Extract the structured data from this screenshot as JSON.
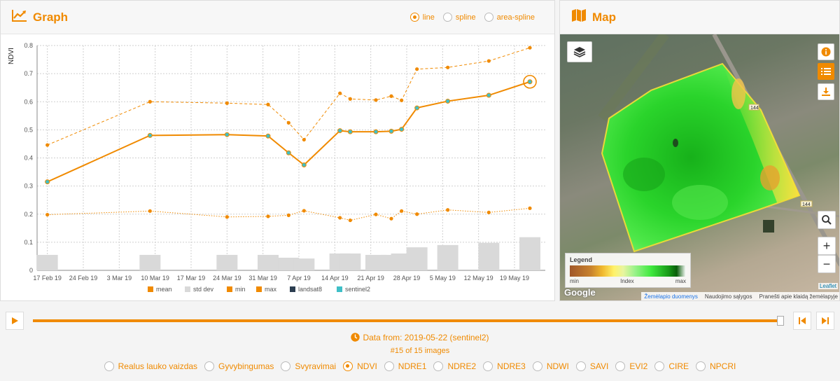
{
  "graph": {
    "title": "Graph",
    "modes": [
      {
        "label": "line",
        "selected": true
      },
      {
        "label": "spline",
        "selected": false
      },
      {
        "label": "area-spline",
        "selected": false
      }
    ]
  },
  "map": {
    "title": "Map",
    "road_label_1": "144",
    "road_label_2": "144",
    "legend": {
      "title": "Legend",
      "min": "min",
      "mid": "Index",
      "max": "max"
    },
    "google_label": "Google",
    "attribution": [
      "Žemėlapio duomenys",
      "Naudojimo sąlygos",
      "Pranešti apie klaidą žemėlapyje"
    ],
    "leaflet_label": "Leaflet"
  },
  "timeline": {
    "date_text": "Data from: 2019-05-22 (sentinel2)",
    "count_text": "#15 of 15 images"
  },
  "indices": [
    {
      "label": "Realus lauko vaizdas",
      "selected": false
    },
    {
      "label": "Gyvybingumas",
      "selected": false
    },
    {
      "label": "Svyravimai",
      "selected": false
    },
    {
      "label": "NDVI",
      "selected": true
    },
    {
      "label": "NDRE1",
      "selected": false
    },
    {
      "label": "NDRE2",
      "selected": false
    },
    {
      "label": "NDRE3",
      "selected": false
    },
    {
      "label": "NDWI",
      "selected": false
    },
    {
      "label": "SAVI",
      "selected": false
    },
    {
      "label": "EVI2",
      "selected": false
    },
    {
      "label": "CIRE",
      "selected": false
    },
    {
      "label": "NPCRI",
      "selected": false
    }
  ],
  "colors": {
    "accent": "#f08a00",
    "std_bar": "#d9d9d9",
    "landsat8": "#2c3e50",
    "sentinel2": "#3fbfc7"
  },
  "chart_data": {
    "type": "line",
    "ylabel": "NDVI",
    "ylim": [
      0,
      0.8
    ],
    "yticks": [
      "0",
      "0.1",
      "0.2",
      "0.3",
      "0.4",
      "0.5",
      "0.6",
      "0.7",
      "0.8"
    ],
    "xlim": [
      "2019-02-15",
      "2019-05-25"
    ],
    "xticks": [
      "17 Feb 19",
      "24 Feb 19",
      "3 Mar 19",
      "10 Mar 19",
      "17 Mar 19",
      "24 Mar 19",
      "31 Mar 19",
      "7 Apr 19",
      "14 Apr 19",
      "21 Apr 19",
      "28 Apr 19",
      "5 May 19",
      "12 May 19",
      "19 May 19"
    ],
    "tick_dates": [
      "2019-02-17",
      "2019-02-24",
      "2019-03-03",
      "2019-03-10",
      "2019-03-17",
      "2019-03-24",
      "2019-03-31",
      "2019-04-07",
      "2019-04-14",
      "2019-04-21",
      "2019-04-28",
      "2019-05-05",
      "2019-05-12",
      "2019-05-19"
    ],
    "legend_position": "bottom",
    "grid": true,
    "series": [
      {
        "name": "mean",
        "x": [
          "2019-02-17",
          "2019-03-09",
          "2019-03-24",
          "2019-04-01",
          "2019-04-05",
          "2019-04-08",
          "2019-04-15",
          "2019-04-17",
          "2019-04-22",
          "2019-04-25",
          "2019-04-27",
          "2019-04-30",
          "2019-05-06",
          "2019-05-14",
          "2019-05-22"
        ],
        "values": [
          0.315,
          0.48,
          0.483,
          0.478,
          0.418,
          0.375,
          0.497,
          0.493,
          0.493,
          0.495,
          0.502,
          0.578,
          0.602,
          0.623,
          0.671
        ],
        "source": [
          "sentinel2",
          "sentinel2",
          "sentinel2",
          "sentinel2",
          "sentinel2",
          "sentinel2",
          "sentinel2",
          "sentinel2",
          "sentinel2",
          "sentinel2",
          "sentinel2",
          "sentinel2",
          "sentinel2",
          "sentinel2",
          "sentinel2"
        ]
      },
      {
        "name": "std dev",
        "type": "bar",
        "x": [
          "2019-02-17",
          "2019-03-09",
          "2019-03-24",
          "2019-04-01",
          "2019-04-05",
          "2019-04-08",
          "2019-04-15",
          "2019-04-17",
          "2019-04-22",
          "2019-04-25",
          "2019-04-27",
          "2019-04-30",
          "2019-05-06",
          "2019-05-14",
          "2019-05-22"
        ],
        "values": [
          0.055,
          0.055,
          0.055,
          0.055,
          0.045,
          0.042,
          0.06,
          0.06,
          0.055,
          0.055,
          0.06,
          0.082,
          0.09,
          0.098,
          0.118
        ]
      },
      {
        "name": "min",
        "x": [
          "2019-02-17",
          "2019-03-09",
          "2019-03-24",
          "2019-04-01",
          "2019-04-05",
          "2019-04-08",
          "2019-04-15",
          "2019-04-17",
          "2019-04-22",
          "2019-04-25",
          "2019-04-27",
          "2019-04-30",
          "2019-05-06",
          "2019-05-14",
          "2019-05-22"
        ],
        "values": [
          0.198,
          0.211,
          0.19,
          0.192,
          0.196,
          0.212,
          0.187,
          0.178,
          0.199,
          0.184,
          0.211,
          0.2,
          0.215,
          0.206,
          0.221
        ]
      },
      {
        "name": "max",
        "x": [
          "2019-02-17",
          "2019-03-09",
          "2019-03-24",
          "2019-04-01",
          "2019-04-05",
          "2019-04-08",
          "2019-04-15",
          "2019-04-17",
          "2019-04-22",
          "2019-04-25",
          "2019-04-27",
          "2019-04-30",
          "2019-05-06",
          "2019-05-14",
          "2019-05-22"
        ],
        "values": [
          0.446,
          0.6,
          0.595,
          0.59,
          0.525,
          0.465,
          0.63,
          0.61,
          0.606,
          0.62,
          0.605,
          0.716,
          0.722,
          0.745,
          0.792
        ]
      },
      {
        "name": "landsat8",
        "values": []
      },
      {
        "name": "sentinel2",
        "values": []
      }
    ]
  }
}
